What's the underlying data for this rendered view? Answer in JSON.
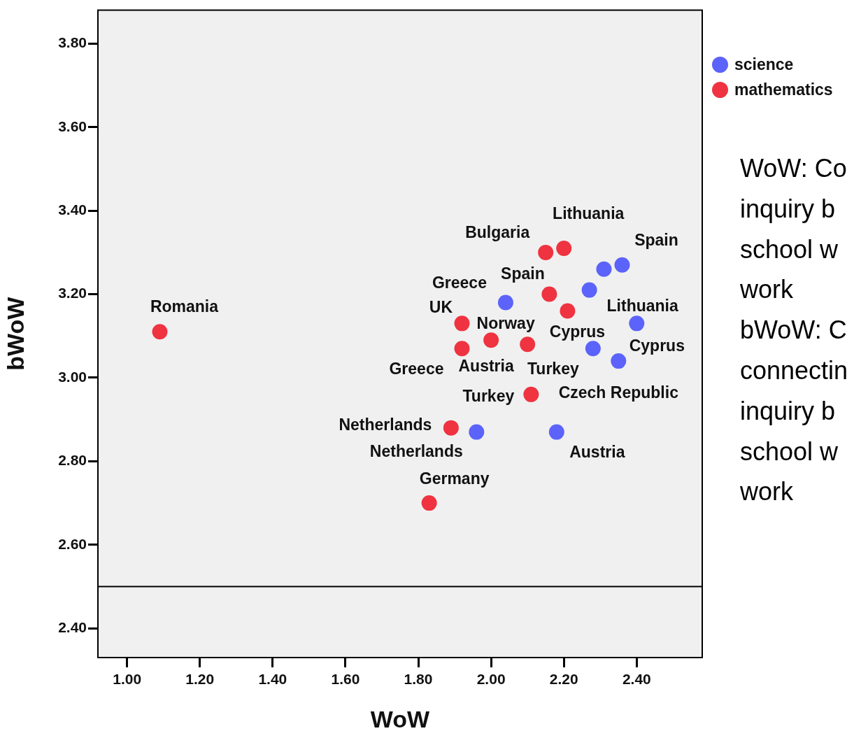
{
  "chart_data": {
    "type": "scatter",
    "xlabel": "WoW",
    "ylabel": "bWoW",
    "xlim": [
      0.92,
      2.58
    ],
    "ylim": [
      2.33,
      3.88
    ],
    "xticks": [
      {
        "value": 1,
        "label": "1.00"
      },
      {
        "value": 1.2,
        "label": "1.20"
      },
      {
        "value": 1.4,
        "label": "1.40"
      },
      {
        "value": 1.6,
        "label": "1.60"
      },
      {
        "value": 1.8,
        "label": "1.80"
      },
      {
        "value": 2,
        "label": "2.00"
      },
      {
        "value": 2.2,
        "label": "2.20"
      },
      {
        "value": 2.4,
        "label": "2.40"
      }
    ],
    "yticks": [
      {
        "value": 2.4,
        "label": "2.40"
      },
      {
        "value": 2.6,
        "label": "2.60"
      },
      {
        "value": 2.8,
        "label": "2.80"
      },
      {
        "value": 3,
        "label": "3.00"
      },
      {
        "value": 3.2,
        "label": "3.20"
      },
      {
        "value": 3.4,
        "label": "3.40"
      },
      {
        "value": 3.6,
        "label": "3.60"
      },
      {
        "value": 3.8,
        "label": "3.80"
      }
    ],
    "grid": false,
    "legend": "right",
    "marker": "circle",
    "ref_lines": [
      {
        "axis": "y",
        "value": 2.5,
        "color": "#000000"
      }
    ],
    "series": [
      {
        "name": "science",
        "color": "#5b63fa",
        "x": [
          2.04,
          2.36,
          2.31,
          2.27,
          2.4,
          2.28,
          2.35,
          2.18,
          1.96
        ],
        "values": [
          3.18,
          3.27,
          3.26,
          3.21,
          3.13,
          3.07,
          3.04,
          2.87,
          2.87
        ],
        "value_labels": [
          "Greece",
          "Spain",
          null,
          "Lithuania",
          "Cyprus",
          "Turkey",
          "Czech Republic",
          "Austria",
          "Netherlands"
        ]
      },
      {
        "name": "mathematics",
        "color": "#ef3340",
        "x": [
          1.09,
          2.15,
          2.2,
          2.16,
          2.21,
          1.92,
          1.92,
          2.0,
          2.1,
          2.11,
          1.89,
          1.83
        ],
        "values": [
          3.11,
          3.3,
          3.31,
          3.2,
          3.16,
          3.13,
          3.07,
          3.09,
          3.08,
          2.96,
          2.88,
          2.7
        ],
        "value_labels": [
          "Romania",
          "Bulgaria",
          "Lithuania",
          "Spain",
          "Cyprus",
          "UK",
          "Greece",
          "Austria",
          "Norway",
          "Turkey",
          "Netherlands",
          "Germany"
        ]
      }
    ],
    "annotations": [
      "WoW: Co\ninquiry b\nschool w\nwork\nbWoW: C\nconnectin\ninquiry b\nschool w\nwork"
    ]
  }
}
